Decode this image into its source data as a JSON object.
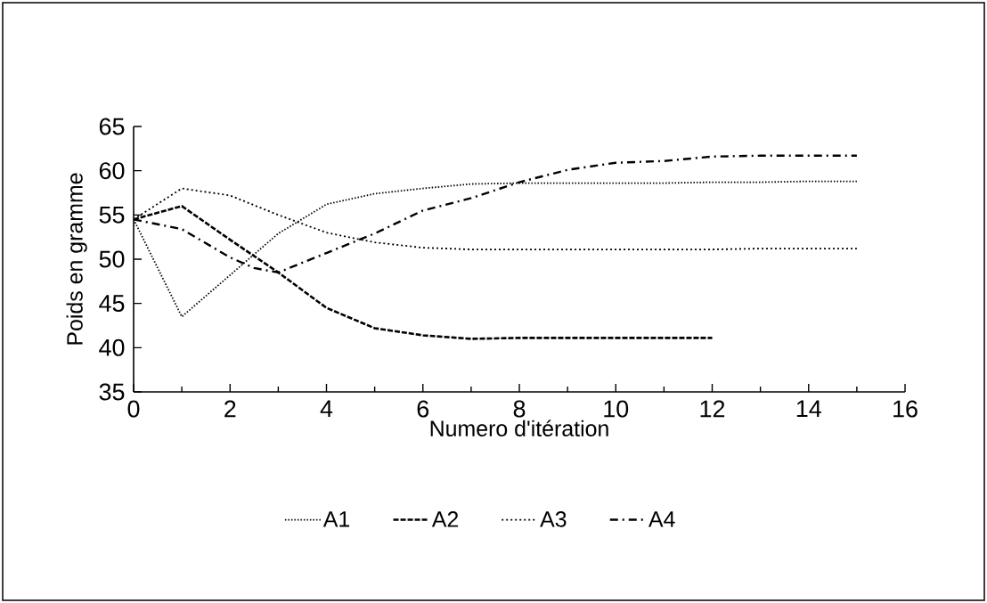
{
  "chart_data": {
    "type": "line",
    "xlabel": "Numero d'itération",
    "ylabel": "Poids en gramme",
    "xlim": [
      0,
      16
    ],
    "ylim": [
      35,
      65
    ],
    "xticks": [
      0,
      2,
      4,
      6,
      8,
      10,
      12,
      14,
      16
    ],
    "yticks": [
      35,
      40,
      45,
      50,
      55,
      60,
      65
    ],
    "legend": "bottom",
    "grid": false,
    "series": [
      {
        "name": "A1",
        "color": "#000000",
        "line_style": "dotted",
        "x": [
          0,
          1,
          2,
          3,
          4,
          5,
          6,
          7,
          8,
          9,
          10,
          11,
          12,
          13,
          14,
          15
        ],
        "values": [
          54.5,
          43.5,
          48.2,
          52.9,
          56.2,
          57.4,
          58.0,
          58.5,
          58.6,
          58.6,
          58.6,
          58.6,
          58.7,
          58.7,
          58.8,
          58.8
        ]
      },
      {
        "name": "A2",
        "color": "#000000",
        "line_style": "dashed",
        "x": [
          0,
          1,
          2,
          3,
          4,
          5,
          6,
          7,
          8,
          9,
          10,
          11,
          12
        ],
        "values": [
          54.5,
          56.0,
          52.2,
          48.5,
          44.5,
          42.2,
          41.4,
          41.0,
          41.1,
          41.1,
          41.1,
          41.1,
          41.1
        ]
      },
      {
        "name": "A3",
        "color": "#000000",
        "line_style": "loosely dotted",
        "x": [
          0,
          1,
          2,
          3,
          4,
          5,
          6,
          7,
          8,
          9,
          10,
          11,
          12,
          13,
          14,
          15
        ],
        "values": [
          54.5,
          58.0,
          57.2,
          55.0,
          53.0,
          51.9,
          51.3,
          51.1,
          51.1,
          51.1,
          51.1,
          51.1,
          51.1,
          51.2,
          51.2,
          51.2
        ]
      },
      {
        "name": "A4",
        "color": "#000000",
        "line_style": "dashdot",
        "x": [
          0,
          1,
          2,
          2.5,
          3,
          4,
          5,
          6,
          7,
          8,
          9,
          10,
          11,
          12,
          13,
          14,
          15
        ],
        "values": [
          54.5,
          53.4,
          50.2,
          49.0,
          48.5,
          50.7,
          52.9,
          55.5,
          56.9,
          58.7,
          60.1,
          60.9,
          61.1,
          61.6,
          61.7,
          61.7,
          61.7
        ]
      }
    ]
  }
}
